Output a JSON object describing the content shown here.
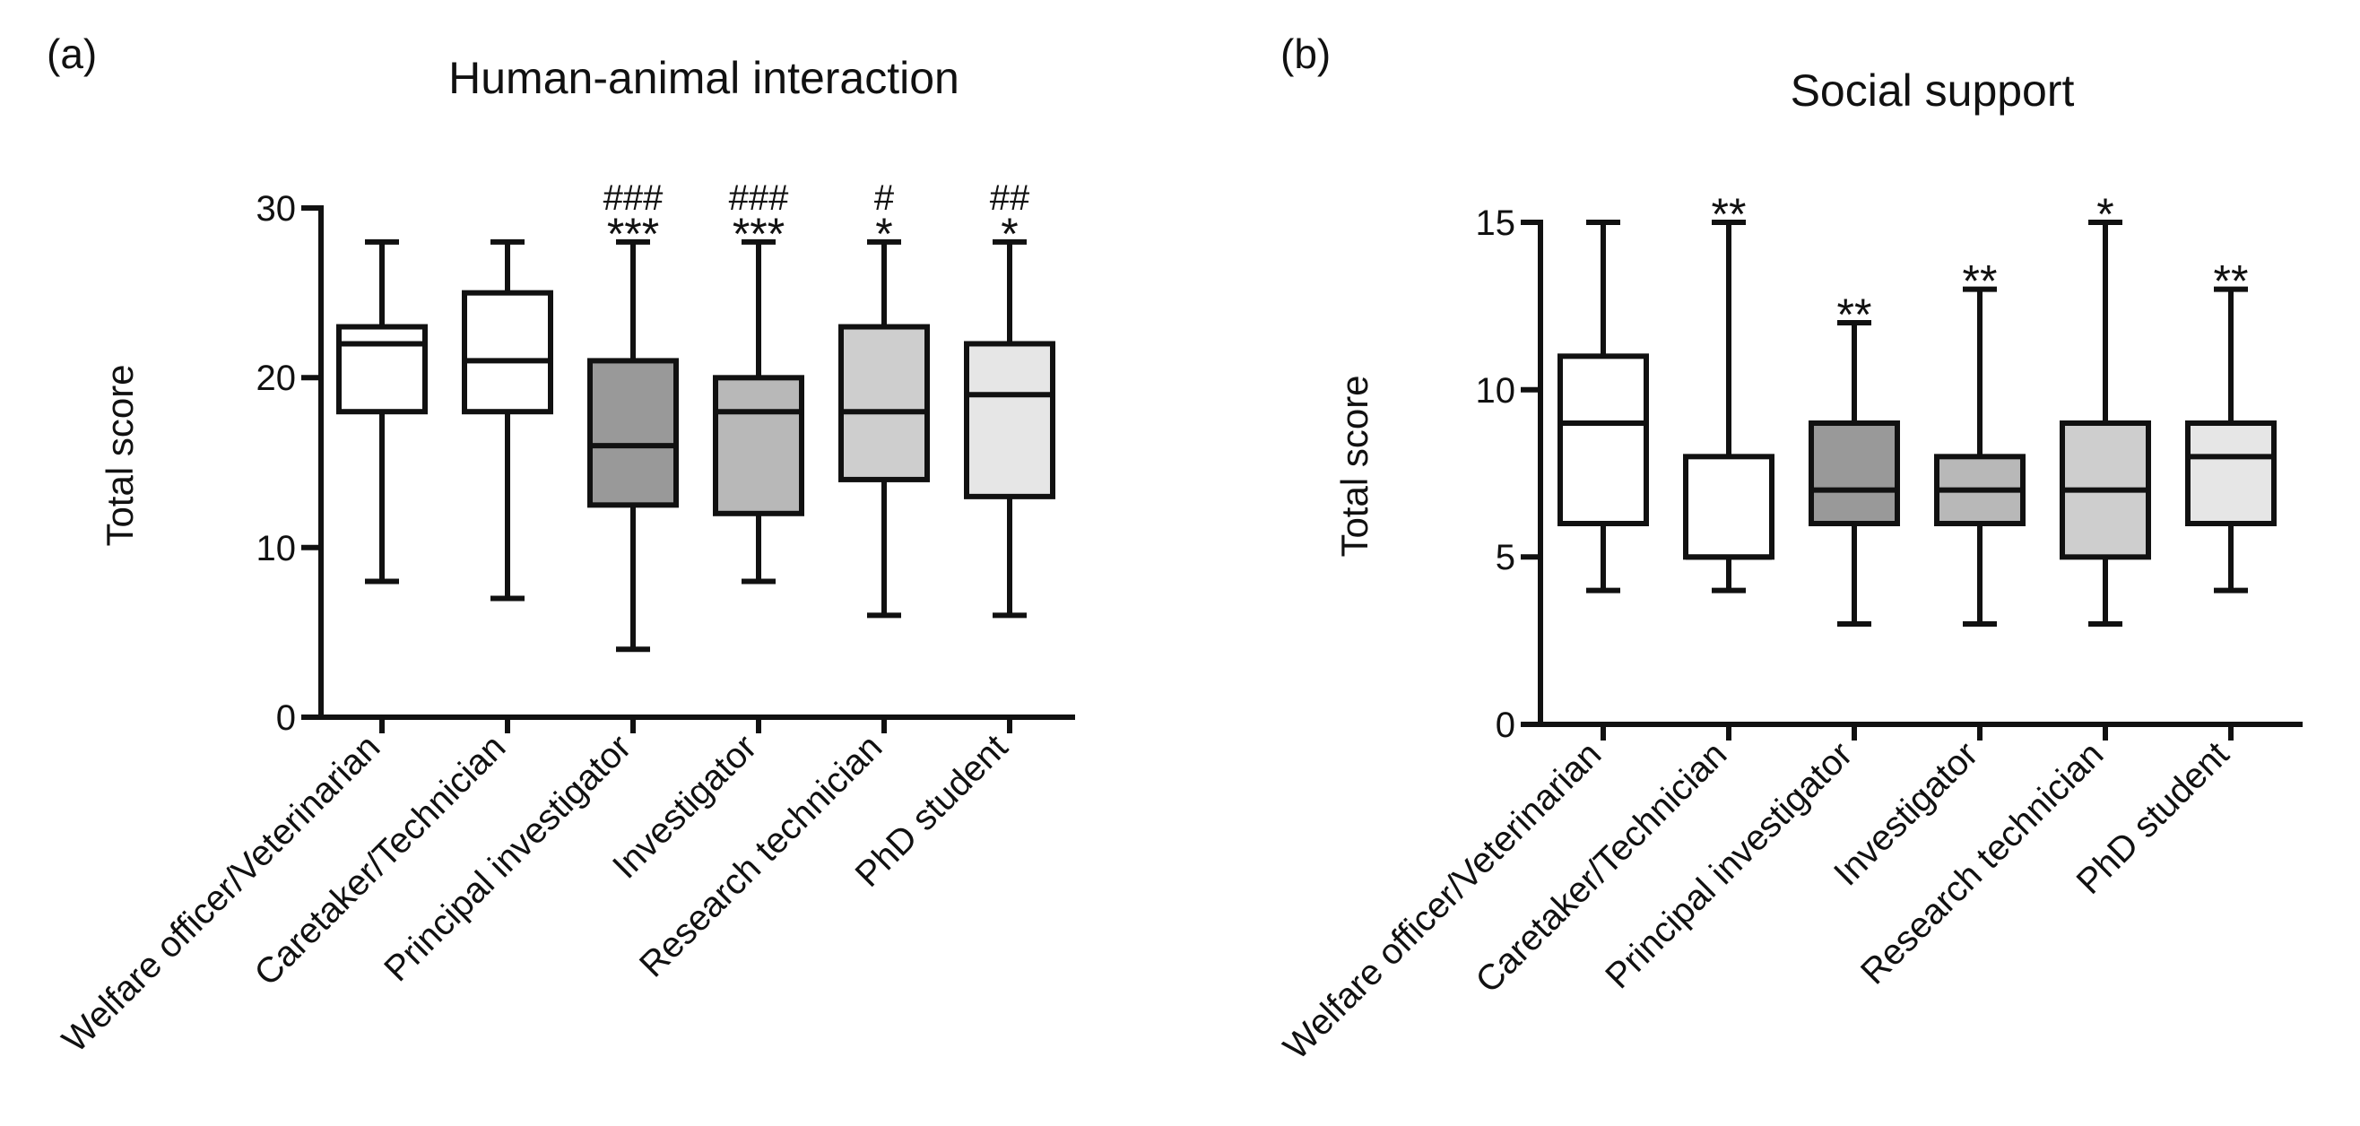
{
  "chart_data": [
    {
      "type": "boxplot",
      "panel_label": "(a)",
      "title": "Human-animal interaction",
      "xlabel": "",
      "ylabel": "Total score",
      "ylim": [
        0,
        30
      ],
      "yticks": [
        0,
        10,
        20,
        30
      ],
      "ytick_labels": [
        "0",
        "10",
        "20",
        "30"
      ],
      "categories": [
        "Welfare officer/Veterinarian",
        "Caretaker/Technician",
        "Principal investigator",
        "Investigator",
        "Research technician",
        "PhD student"
      ],
      "boxes": [
        {
          "min": 8,
          "q1": 18,
          "median": 22,
          "q3": 23,
          "max": 28,
          "fill": "#ffffff",
          "sig_stars": "",
          "sig_hash": ""
        },
        {
          "min": 7,
          "q1": 18,
          "median": 21,
          "q3": 25,
          "max": 28,
          "fill": "#ffffff",
          "sig_stars": "",
          "sig_hash": ""
        },
        {
          "min": 4,
          "q1": 12.5,
          "median": 16,
          "q3": 21,
          "max": 28,
          "fill": "#999999",
          "sig_stars": "***",
          "sig_hash": "###"
        },
        {
          "min": 8,
          "q1": 12,
          "median": 18,
          "q3": 20,
          "max": 28,
          "fill": "#b8b8b8",
          "sig_stars": "***",
          "sig_hash": "###"
        },
        {
          "min": 6,
          "q1": 14,
          "median": 18,
          "q3": 23,
          "max": 28,
          "fill": "#cecece",
          "sig_stars": "*",
          "sig_hash": "#"
        },
        {
          "min": 6,
          "q1": 13,
          "median": 19,
          "q3": 22,
          "max": 28,
          "fill": "#e6e6e6",
          "sig_stars": "*",
          "sig_hash": "##"
        }
      ]
    },
    {
      "type": "boxplot",
      "panel_label": "(b)",
      "title": "Social support",
      "xlabel": "",
      "ylabel": "Total score",
      "ylim": [
        0,
        15
      ],
      "yticks": [
        0,
        5,
        10,
        15
      ],
      "ytick_labels": [
        "0",
        "5",
        "10",
        "15"
      ],
      "categories": [
        "Welfare officer/Veterinarian",
        "Caretaker/Technician",
        "Principal investigator",
        "Investigator",
        "Research technician",
        "PhD student"
      ],
      "boxes": [
        {
          "min": 4,
          "q1": 6,
          "median": 9,
          "q3": 11,
          "max": 15,
          "fill": "#ffffff",
          "sig_stars": "",
          "sig_hash": ""
        },
        {
          "min": 4,
          "q1": 5,
          "median": 5,
          "q3": 8,
          "max": 15,
          "fill": "#ffffff",
          "sig_stars": "**",
          "sig_hash": ""
        },
        {
          "min": 3,
          "q1": 6,
          "median": 7,
          "q3": 9,
          "max": 12,
          "fill": "#999999",
          "sig_stars": "**",
          "sig_hash": ""
        },
        {
          "min": 3,
          "q1": 6,
          "median": 7,
          "q3": 8,
          "max": 13,
          "fill": "#b8b8b8",
          "sig_stars": "**",
          "sig_hash": ""
        },
        {
          "min": 3,
          "q1": 5,
          "median": 7,
          "q3": 9,
          "max": 15,
          "fill": "#cecece",
          "sig_stars": "*",
          "sig_hash": ""
        },
        {
          "min": 4,
          "q1": 6,
          "median": 8,
          "q3": 9,
          "max": 13,
          "fill": "#e6e6e6",
          "sig_stars": "**",
          "sig_hash": ""
        }
      ]
    }
  ]
}
